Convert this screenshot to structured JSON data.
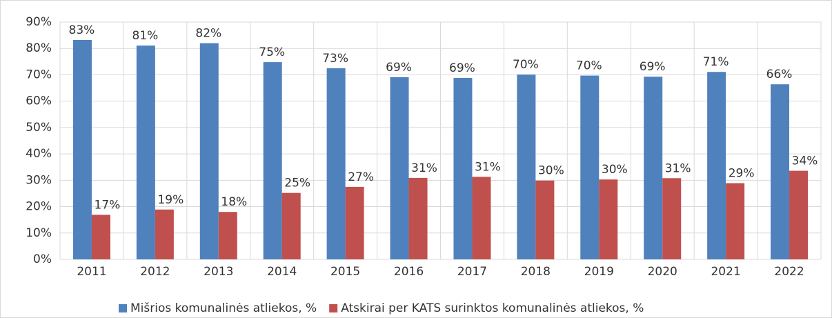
{
  "chart_data": {
    "type": "bar",
    "categories": [
      "2011",
      "2012",
      "2013",
      "2014",
      "2015",
      "2016",
      "2017",
      "2018",
      "2019",
      "2020",
      "2021",
      "2022"
    ],
    "series": [
      {
        "name": "Mišrios komunalinės atliekos, %",
        "color": "#4f81bd",
        "values": [
          83.2,
          81.1,
          82.0,
          74.8,
          72.5,
          69.1,
          68.8,
          70.1,
          69.7,
          69.3,
          71.1,
          66.4
        ],
        "value_labels": [
          "83%",
          "81%",
          "82%",
          "75%",
          "73%",
          "69%",
          "69%",
          "70%",
          "70%",
          "69%",
          "71%",
          "66%"
        ]
      },
      {
        "name": "Atskirai per KATS surinktos komunalinės atliekos, %",
        "color": "#c0504d",
        "values": [
          16.9,
          18.9,
          18.0,
          25.2,
          27.5,
          30.9,
          31.3,
          29.9,
          30.3,
          30.8,
          28.9,
          33.6
        ],
        "value_labels": [
          "17%",
          "19%",
          "18%",
          "25%",
          "27%",
          "31%",
          "31%",
          "30%",
          "30%",
          "31%",
          "29%",
          "34%"
        ]
      }
    ],
    "ylim": [
      0,
      90
    ],
    "yticks": [
      {
        "value": 0,
        "label": "0%"
      },
      {
        "value": 10,
        "label": "10%"
      },
      {
        "value": 20,
        "label": "20%"
      },
      {
        "value": 30,
        "label": "30%"
      },
      {
        "value": 40,
        "label": "40%"
      },
      {
        "value": 50,
        "label": "50%"
      },
      {
        "value": 60,
        "label": "60%"
      },
      {
        "value": 70,
        "label": "70%"
      },
      {
        "value": 80,
        "label": "80%"
      },
      {
        "value": 90,
        "label": "90%"
      }
    ],
    "grid": true,
    "legend": "bottom"
  }
}
